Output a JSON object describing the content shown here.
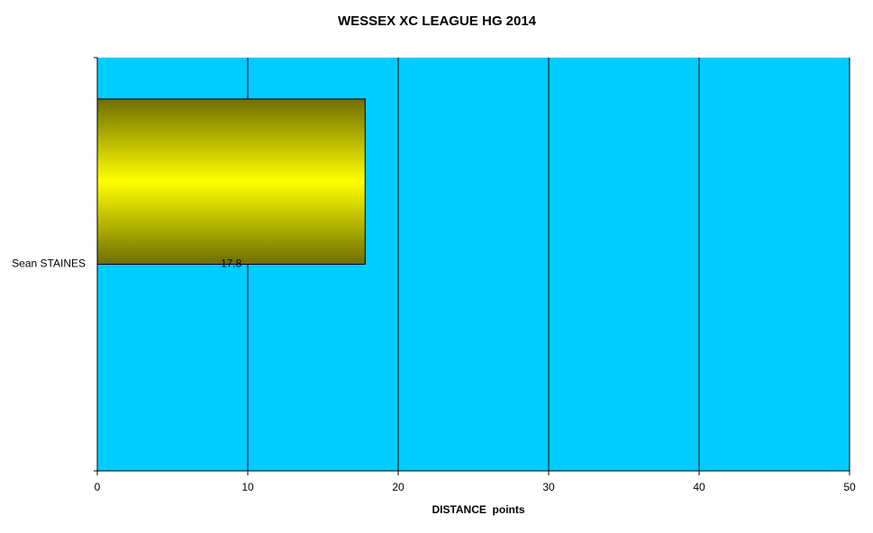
{
  "chart_data": {
    "type": "bar",
    "orientation": "horizontal",
    "title": "WESSEX XC LEAGUE HG 2014",
    "xlabel": "DISTANCE  points",
    "categories": [
      "Sean STAINES"
    ],
    "values": [
      17.8
    ],
    "color": "#ffff00",
    "background": "#00ccff",
    "xlim": [
      0,
      50
    ],
    "xticks": [
      0,
      10,
      20,
      30,
      40,
      50
    ],
    "grid": true
  }
}
